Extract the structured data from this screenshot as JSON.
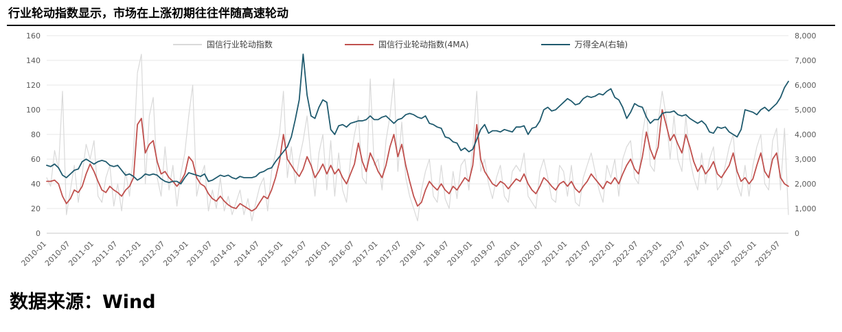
{
  "title": "行业轮动指数显示，市场在上涨初期往往伴随高速轮动",
  "source": "数据来源：Wind",
  "chart_data": {
    "type": "line",
    "x_start": "2010-01",
    "x_end": "2025-09",
    "x_frequency": "monthly",
    "x_ticks": [
      "2010-01",
      "2010-07",
      "2011-01",
      "2011-07",
      "2012-01",
      "2012-07",
      "2013-01",
      "2013-07",
      "2014-01",
      "2014-07",
      "2015-01",
      "2015-07",
      "2016-01",
      "2016-07",
      "2017-01",
      "2017-07",
      "2018-01",
      "2018-07",
      "2019-01",
      "2019-07",
      "2020-01",
      "2020-07",
      "2021-01",
      "2021-07",
      "2022-01",
      "2022-07",
      "2023-01",
      "2023-07",
      "2024-01",
      "2024-07",
      "2025-01",
      "2025-07"
    ],
    "left_axis": {
      "min": 0,
      "max": 160,
      "step": 20,
      "tick_labels": [
        "0",
        "20",
        "40",
        "60",
        "80",
        "100",
        "120",
        "140",
        "160"
      ]
    },
    "right_axis": {
      "min": 0,
      "max": 8000,
      "step": 1000,
      "tick_labels": [
        "0",
        "1,000",
        "2,000",
        "3,000",
        "4,000",
        "5,000",
        "6,000",
        "7,000",
        "8,000"
      ]
    },
    "grid": "horizontal",
    "legend_position": "top",
    "series": [
      {
        "id": "rotation-index",
        "name": "国信行业轮动指数",
        "axis": "left",
        "color": "#d9d9d9",
        "width": 1.2,
        "values": [
          45,
          38,
          67,
          52,
          115,
          15,
          35,
          55,
          25,
          48,
          72,
          60,
          75,
          30,
          25,
          45,
          55,
          22,
          40,
          18,
          50,
          30,
          65,
          130,
          145,
          40,
          95,
          110,
          45,
          30,
          70,
          35,
          55,
          22,
          48,
          65,
          95,
          120,
          30,
          45,
          55,
          18,
          35,
          20,
          45,
          18,
          30,
          15,
          25,
          35,
          15,
          28,
          10,
          25,
          38,
          45,
          18,
          50,
          65,
          80,
          115,
          45,
          70,
          40,
          60,
          75,
          95,
          60,
          30,
          65,
          80,
          35,
          75,
          30,
          65,
          35,
          25,
          60,
          80,
          95,
          45,
          40,
          125,
          55,
          60,
          35,
          75,
          95,
          125,
          50,
          90,
          45,
          30,
          20,
          10,
          35,
          50,
          60,
          30,
          25,
          55,
          28,
          20,
          50,
          28,
          55,
          60,
          35,
          70,
          115,
          50,
          60,
          40,
          28,
          45,
          55,
          30,
          25,
          50,
          55,
          50,
          65,
          30,
          25,
          20,
          50,
          60,
          45,
          28,
          25,
          55,
          50,
          30,
          55,
          25,
          22,
          45,
          55,
          65,
          50,
          35,
          25,
          55,
          45,
          60,
          30,
          60,
          70,
          75,
          45,
          40,
          80,
          100,
          55,
          50,
          90,
          115,
          95,
          60,
          95,
          60,
          50,
          95,
          60,
          45,
          35,
          65,
          40,
          60,
          70,
          35,
          40,
          55,
          70,
          80,
          40,
          30,
          55,
          30,
          55,
          70,
          80,
          40,
          35,
          75,
          85,
          35,
          85,
          15
        ]
      },
      {
        "id": "rotation-index-4ma",
        "name": "国信行业轮动指数(4MA)",
        "axis": "left",
        "color": "#c0504d",
        "width": 1.8,
        "values": [
          42,
          42,
          43,
          40,
          30,
          24,
          28,
          35,
          33,
          38,
          48,
          56,
          50,
          42,
          35,
          33,
          38,
          35,
          33,
          30,
          35,
          38,
          45,
          88,
          93,
          65,
          72,
          75,
          58,
          48,
          50,
          45,
          42,
          38,
          42,
          48,
          62,
          58,
          45,
          40,
          38,
          32,
          28,
          26,
          30,
          26,
          23,
          21,
          20,
          24,
          22,
          20,
          18,
          20,
          25,
          30,
          28,
          35,
          45,
          58,
          80,
          60,
          55,
          50,
          46,
          52,
          62,
          55,
          45,
          50,
          56,
          48,
          55,
          48,
          52,
          45,
          40,
          48,
          56,
          73,
          58,
          50,
          65,
          58,
          50,
          45,
          55,
          70,
          80,
          62,
          72,
          55,
          42,
          30,
          22,
          25,
          35,
          42,
          38,
          35,
          40,
          35,
          32,
          38,
          35,
          40,
          45,
          42,
          55,
          88,
          60,
          50,
          45,
          40,
          38,
          42,
          40,
          36,
          40,
          44,
          42,
          48,
          40,
          35,
          32,
          38,
          45,
          42,
          38,
          35,
          40,
          42,
          38,
          42,
          36,
          33,
          38,
          42,
          48,
          44,
          40,
          36,
          42,
          40,
          45,
          40,
          48,
          55,
          60,
          52,
          48,
          62,
          82,
          68,
          60,
          70,
          100,
          88,
          75,
          80,
          72,
          65,
          80,
          70,
          58,
          50,
          55,
          48,
          52,
          58,
          48,
          45,
          50,
          55,
          65,
          50,
          42,
          45,
          40,
          44,
          55,
          65,
          50,
          45,
          60,
          65,
          45,
          40,
          38
        ]
      },
      {
        "id": "wind-all-a",
        "name": "万得全A(右轴)",
        "axis": "right",
        "color": "#1f5a6e",
        "width": 1.8,
        "values": [
          2750,
          2700,
          2800,
          2650,
          2350,
          2250,
          2400,
          2550,
          2600,
          2900,
          3000,
          2900,
          2800,
          2900,
          2950,
          2900,
          2750,
          2700,
          2750,
          2550,
          2350,
          2400,
          2300,
          2150,
          2250,
          2400,
          2350,
          2400,
          2350,
          2200,
          2100,
          2050,
          2100,
          2100,
          2000,
          2250,
          2450,
          2400,
          2350,
          2300,
          2400,
          2100,
          2150,
          2250,
          2350,
          2300,
          2350,
          2250,
          2200,
          2300,
          2250,
          2250,
          2250,
          2300,
          2450,
          2500,
          2600,
          2650,
          2900,
          3100,
          3300,
          3500,
          3900,
          4600,
          5400,
          7250,
          5600,
          4750,
          4650,
          5100,
          5400,
          5300,
          4200,
          4000,
          4350,
          4400,
          4300,
          4450,
          4500,
          4550,
          4550,
          4600,
          4750,
          4600,
          4600,
          4700,
          4750,
          4600,
          4450,
          4600,
          4650,
          4800,
          4850,
          4800,
          4700,
          4650,
          4750,
          4450,
          4400,
          4300,
          4250,
          3900,
          3850,
          3700,
          3650,
          3350,
          3450,
          3300,
          3400,
          3800,
          4200,
          4400,
          4050,
          4150,
          4150,
          4100,
          4200,
          4150,
          4100,
          4300,
          4300,
          4350,
          4000,
          4250,
          4300,
          4550,
          5000,
          5100,
          4950,
          5000,
          5150,
          5300,
          5450,
          5350,
          5200,
          5250,
          5450,
          5550,
          5500,
          5550,
          5650,
          5600,
          5750,
          5850,
          5500,
          5400,
          5100,
          4650,
          4900,
          5250,
          5150,
          5100,
          4700,
          4450,
          4600,
          4600,
          4850,
          4900,
          4900,
          4950,
          4800,
          4750,
          4800,
          4650,
          4550,
          4450,
          4550,
          4400,
          4100,
          4050,
          4300,
          4250,
          4300,
          4100,
          4000,
          3900,
          4200,
          5000,
          4950,
          4900,
          4800,
          5000,
          5100,
          4950,
          5100,
          5250,
          5500,
          5900,
          6150
        ]
      }
    ]
  }
}
